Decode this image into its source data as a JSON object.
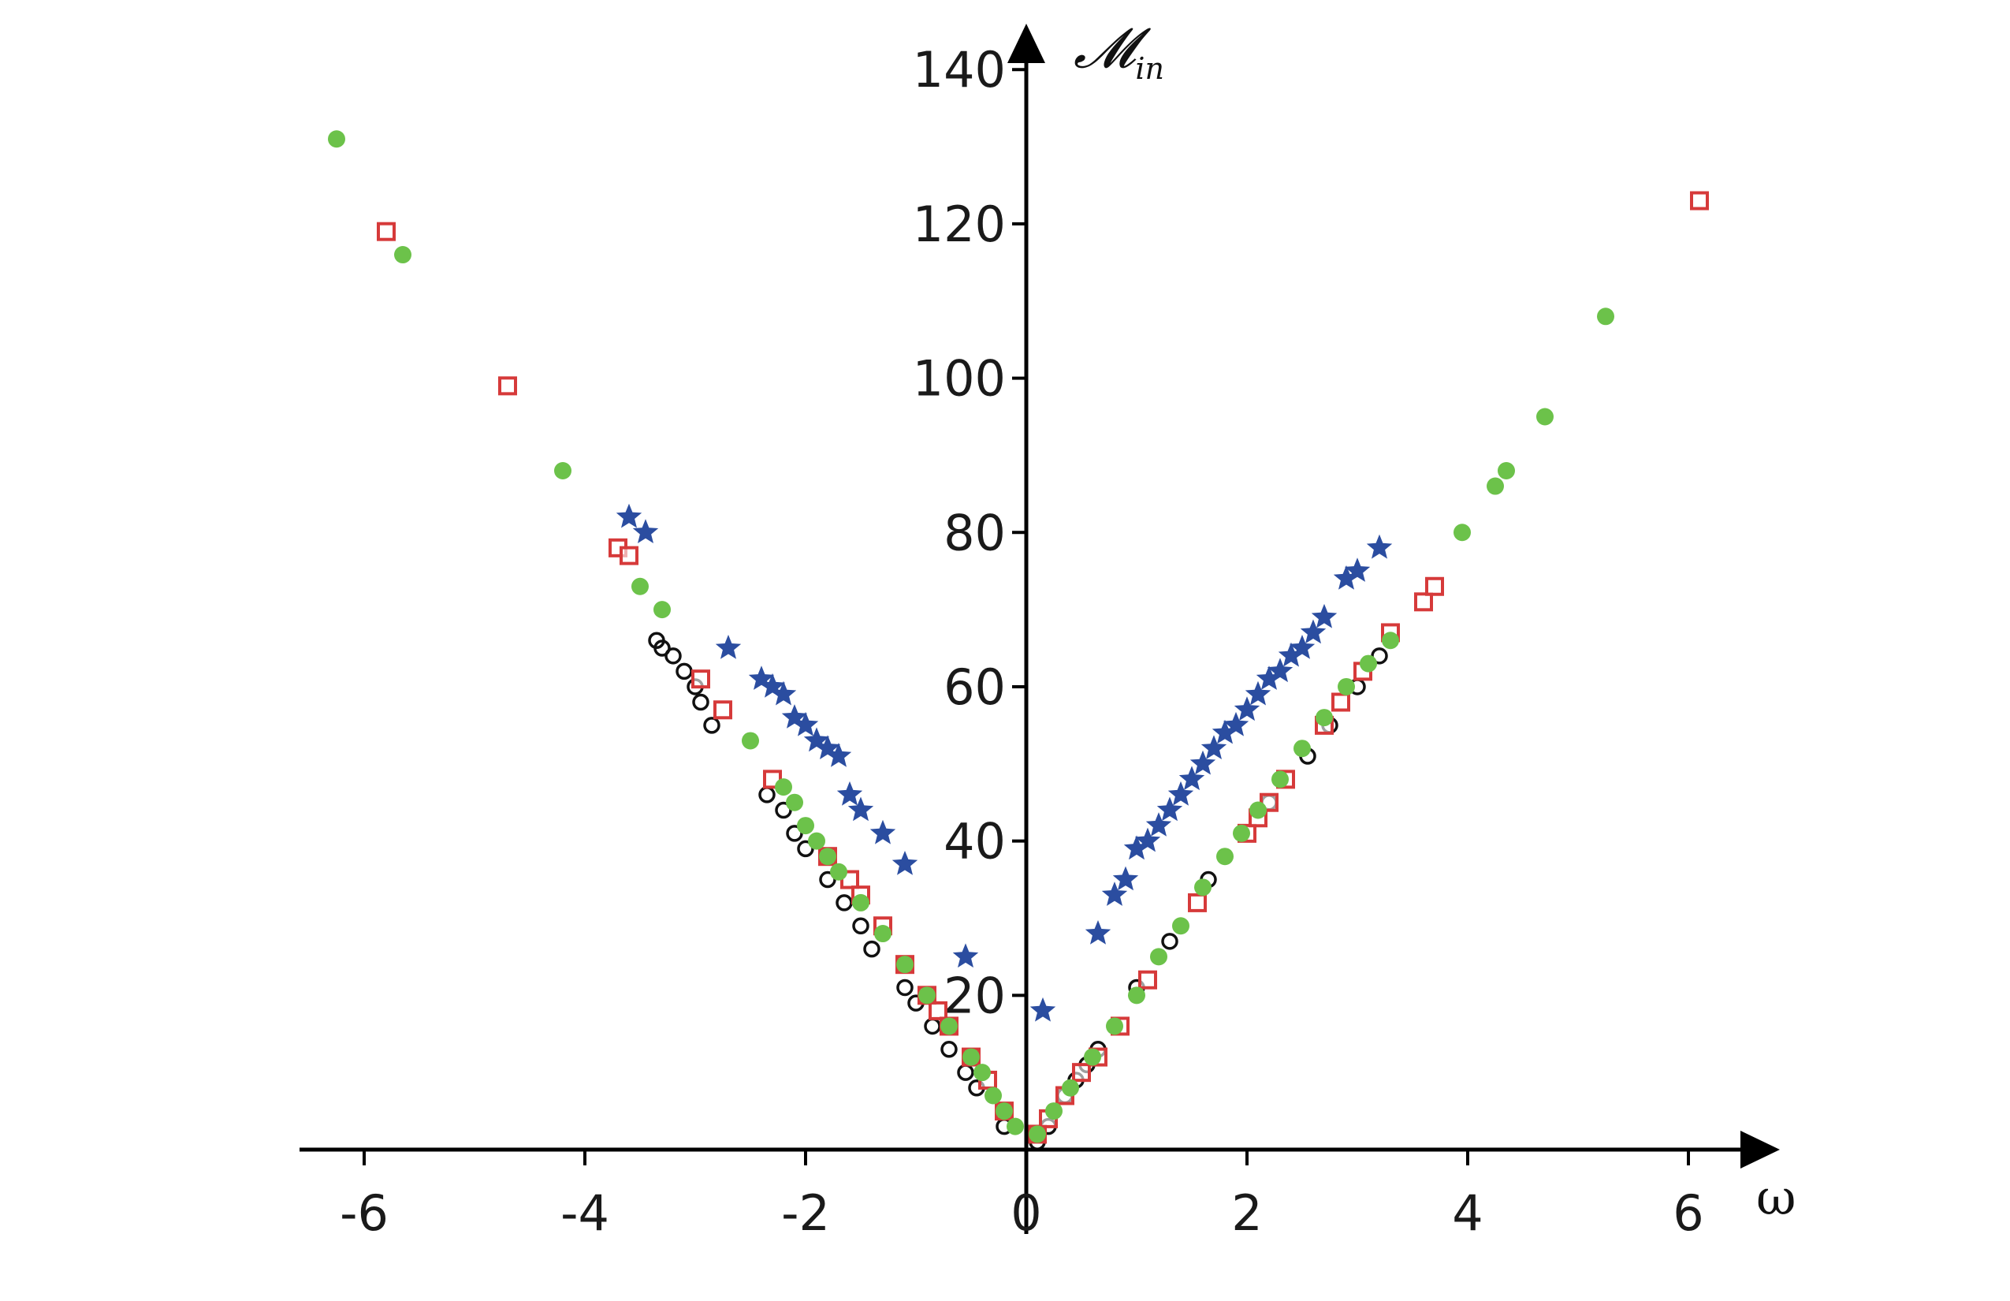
{
  "chart_data": {
    "type": "scatter",
    "title": "",
    "xlabel": "ω",
    "ylabel": "𝓜",
    "ylabel_sub": "in",
    "xlim": [
      -6.6,
      6.6
    ],
    "ylim": [
      0,
      140
    ],
    "x_ticks": [
      "-6",
      "-4",
      "-2",
      "0",
      "2",
      "4",
      "6"
    ],
    "y_ticks": [
      "20",
      "40",
      "60",
      "80",
      "100",
      "120",
      "140"
    ],
    "grid": false,
    "legend": "none",
    "series": [
      {
        "marker": "star",
        "color": "#2b4da0",
        "points": [
          [
            -3.6,
            82
          ],
          [
            -3.45,
            80
          ],
          [
            -2.7,
            65
          ],
          [
            -2.4,
            61
          ],
          [
            -2.3,
            60
          ],
          [
            -2.2,
            59
          ],
          [
            -2.1,
            56
          ],
          [
            -2.0,
            55
          ],
          [
            -1.9,
            53
          ],
          [
            -1.8,
            52
          ],
          [
            -1.7,
            51
          ],
          [
            -1.6,
            46
          ],
          [
            -1.5,
            44
          ],
          [
            -1.3,
            41
          ],
          [
            -1.1,
            37
          ],
          [
            -0.55,
            25
          ],
          [
            0.15,
            18
          ],
          [
            0.65,
            28
          ],
          [
            0.8,
            33
          ],
          [
            0.9,
            35
          ],
          [
            1.0,
            39
          ],
          [
            1.1,
            40
          ],
          [
            1.2,
            42
          ],
          [
            1.3,
            44
          ],
          [
            1.4,
            46
          ],
          [
            1.5,
            48
          ],
          [
            1.6,
            50
          ],
          [
            1.7,
            52
          ],
          [
            1.8,
            54
          ],
          [
            1.9,
            55
          ],
          [
            2.0,
            57
          ],
          [
            2.1,
            59
          ],
          [
            2.2,
            61
          ],
          [
            2.3,
            62
          ],
          [
            2.4,
            64
          ],
          [
            2.5,
            65
          ],
          [
            2.6,
            67
          ],
          [
            2.7,
            69
          ],
          [
            2.9,
            74
          ],
          [
            3.0,
            75
          ],
          [
            3.2,
            78
          ]
        ]
      },
      {
        "marker": "circle-open",
        "color": "#111111",
        "points": [
          [
            -3.35,
            66
          ],
          [
            -3.3,
            65
          ],
          [
            -3.2,
            64
          ],
          [
            -3.1,
            62
          ],
          [
            -3.0,
            60
          ],
          [
            -2.95,
            58
          ],
          [
            -2.85,
            55
          ],
          [
            -2.35,
            46
          ],
          [
            -2.2,
            44
          ],
          [
            -2.1,
            41
          ],
          [
            -2.0,
            39
          ],
          [
            -1.8,
            35
          ],
          [
            -1.65,
            32
          ],
          [
            -1.5,
            29
          ],
          [
            -1.4,
            26
          ],
          [
            -1.1,
            21
          ],
          [
            -1.0,
            19
          ],
          [
            -0.85,
            16
          ],
          [
            -0.7,
            13
          ],
          [
            -0.55,
            10
          ],
          [
            -0.45,
            8
          ],
          [
            -0.2,
            3
          ],
          [
            0.1,
            1
          ],
          [
            0.2,
            3
          ],
          [
            0.35,
            7
          ],
          [
            0.45,
            9
          ],
          [
            0.55,
            11
          ],
          [
            0.65,
            13
          ],
          [
            1.0,
            21
          ],
          [
            1.3,
            27
          ],
          [
            1.65,
            35
          ],
          [
            2.2,
            45
          ],
          [
            2.55,
            51
          ],
          [
            2.75,
            55
          ],
          [
            3.0,
            60
          ],
          [
            3.2,
            64
          ]
        ]
      },
      {
        "marker": "square-open",
        "color": "#d63a3a",
        "points": [
          [
            -5.8,
            119
          ],
          [
            -4.7,
            99
          ],
          [
            -3.7,
            78
          ],
          [
            -3.6,
            77
          ],
          [
            -2.95,
            61
          ],
          [
            -2.75,
            57
          ],
          [
            -2.3,
            48
          ],
          [
            -1.8,
            38
          ],
          [
            -1.6,
            35
          ],
          [
            -1.5,
            33
          ],
          [
            -1.3,
            29
          ],
          [
            -1.1,
            24
          ],
          [
            -0.9,
            20
          ],
          [
            -0.8,
            18
          ],
          [
            -0.7,
            16
          ],
          [
            -0.5,
            12
          ],
          [
            -0.35,
            9
          ],
          [
            -0.2,
            5
          ],
          [
            0.1,
            2
          ],
          [
            0.2,
            4
          ],
          [
            0.35,
            7
          ],
          [
            0.5,
            10
          ],
          [
            0.65,
            12
          ],
          [
            0.85,
            16
          ],
          [
            1.1,
            22
          ],
          [
            1.55,
            32
          ],
          [
            2.0,
            41
          ],
          [
            2.1,
            43
          ],
          [
            2.2,
            45
          ],
          [
            2.35,
            48
          ],
          [
            2.7,
            55
          ],
          [
            2.85,
            58
          ],
          [
            3.05,
            62
          ],
          [
            3.3,
            67
          ],
          [
            3.6,
            71
          ],
          [
            3.7,
            73
          ],
          [
            6.1,
            123
          ]
        ]
      },
      {
        "marker": "circle-filled",
        "color": "#6cc24a",
        "points": [
          [
            -6.25,
            131
          ],
          [
            -5.65,
            116
          ],
          [
            -4.2,
            88
          ],
          [
            -3.5,
            73
          ],
          [
            -3.3,
            70
          ],
          [
            -2.5,
            53
          ],
          [
            -2.2,
            47
          ],
          [
            -2.1,
            45
          ],
          [
            -2.0,
            42
          ],
          [
            -1.9,
            40
          ],
          [
            -1.8,
            38
          ],
          [
            -1.7,
            36
          ],
          [
            -1.5,
            32
          ],
          [
            -1.3,
            28
          ],
          [
            -1.1,
            24
          ],
          [
            -0.9,
            20
          ],
          [
            -0.7,
            16
          ],
          [
            -0.5,
            12
          ],
          [
            -0.4,
            10
          ],
          [
            -0.3,
            7
          ],
          [
            -0.2,
            5
          ],
          [
            -0.1,
            3
          ],
          [
            0.1,
            2
          ],
          [
            0.25,
            5
          ],
          [
            0.4,
            8
          ],
          [
            0.6,
            12
          ],
          [
            0.8,
            16
          ],
          [
            1.0,
            20
          ],
          [
            1.2,
            25
          ],
          [
            1.4,
            29
          ],
          [
            1.6,
            34
          ],
          [
            1.8,
            38
          ],
          [
            1.95,
            41
          ],
          [
            2.1,
            44
          ],
          [
            2.3,
            48
          ],
          [
            2.5,
            52
          ],
          [
            2.7,
            56
          ],
          [
            2.9,
            60
          ],
          [
            3.1,
            63
          ],
          [
            3.3,
            66
          ],
          [
            3.95,
            80
          ],
          [
            4.25,
            86
          ],
          [
            4.35,
            88
          ],
          [
            4.7,
            95
          ],
          [
            5.25,
            108
          ]
        ]
      }
    ]
  }
}
